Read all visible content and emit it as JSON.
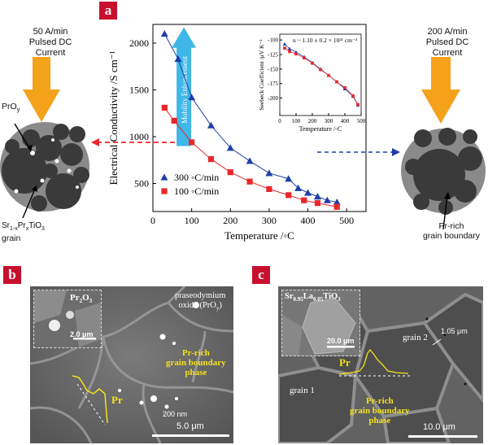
{
  "labels": {
    "a": "a",
    "b": "b",
    "c": "c"
  },
  "left": {
    "current": [
      "50 A/min",
      "Pulsed DC",
      "Current"
    ],
    "phase_label": "PrO",
    "phase_sub": "y",
    "grain_label": [
      "Sr",
      "1-x",
      "Pr",
      "x",
      "TiO",
      "3"
    ],
    "grain_word": "grain"
  },
  "right": {
    "current": [
      "200 A/min",
      "Pulsed DC",
      "Current"
    ],
    "label_line1": "Pr-rich",
    "label_line2": "grain boundary"
  },
  "chart_data": [
    {
      "type": "line",
      "xlabel": "Temperature /◦C",
      "ylabel": "Electrical Conductivity /S cm⁻¹",
      "xlim": [
        0,
        550
      ],
      "ylim": [
        200,
        2200
      ],
      "xticks": [
        0,
        100,
        200,
        300,
        400,
        500
      ],
      "yticks": [
        500,
        1000,
        1500,
        2000
      ],
      "grid": false,
      "legend_position": "bottom-left",
      "series": [
        {
          "name": "300 ◦C/min",
          "color": "#1f3fa8",
          "marker": "triangle",
          "x": [
            30,
            65,
            100,
            150,
            200,
            250,
            300,
            350,
            375,
            400,
            425,
            450,
            475
          ],
          "y": [
            2100,
            1830,
            1420,
            1120,
            880,
            740,
            610,
            550,
            450,
            400,
            360,
            320,
            300
          ]
        },
        {
          "name": "100 ◦C/min",
          "color": "#e8272a",
          "marker": "square",
          "x": [
            30,
            55,
            100,
            150,
            200,
            250,
            300,
            350,
            390,
            425,
            475
          ],
          "y": [
            1310,
            1170,
            940,
            760,
            620,
            520,
            440,
            375,
            320,
            290,
            250
          ]
        }
      ],
      "annotation": "Mobility Enhancement"
    },
    {
      "type": "line",
      "xlabel": "Temperature /◦C",
      "ylabel": "Seebeck Coefficient /μV K⁻¹",
      "annotation": "n ~ 1.10 ± 0.2 × 10²¹ cm⁻³",
      "xlim": [
        0,
        500
      ],
      "ylim": [
        -230,
        -90
      ],
      "xticks": [
        0,
        100,
        200,
        300,
        400,
        500
      ],
      "yticks": [
        -100,
        -125,
        -150,
        -175,
        -200
      ],
      "series": [
        {
          "name": "",
          "color": "#1f3fa8",
          "marker": "triangle",
          "x": [
            30,
            60,
            100,
            150,
            200,
            250,
            300,
            350,
            400,
            450,
            480
          ],
          "y": [
            -107,
            -115,
            -121,
            -129,
            -139,
            -150,
            -161,
            -172,
            -184,
            -197,
            -212
          ]
        },
        {
          "name": "",
          "color": "#e8272a",
          "marker": "square",
          "x": [
            30,
            60,
            100,
            150,
            200,
            250,
            300,
            350,
            400,
            450,
            480
          ],
          "y": [
            -114,
            -120,
            -124,
            -131,
            -140,
            -151,
            -161,
            -172,
            -182,
            -196,
            -211
          ]
        }
      ]
    }
  ],
  "b": {
    "inset_label": "Pr",
    "inset_sub1": "2",
    "inset_mid": "O",
    "inset_sub2": "3",
    "inset_scale": "2.0 μm",
    "oxide_label": [
      "praseodymium",
      "oxide (PrO"
    ],
    "oxide_sub": "y",
    "oxide_end": ")",
    "gb_label": [
      "Pr-rich",
      "grain boundary",
      "phase"
    ],
    "pr_label": "Pr",
    "size_label": "200 nm",
    "scale": "5.0 μm"
  },
  "c": {
    "inset_label": [
      "Sr",
      "0.95",
      "La",
      "0.05",
      "TiO",
      "3"
    ],
    "inset_scale": "20.0 μm",
    "size_label": "1.05 μm",
    "grain1": "grain 1",
    "grain2": "grain 2",
    "pr_label": "Pr",
    "gb_label": [
      "Pr-rich",
      "grain boundary",
      "phase"
    ],
    "scale": "10.0 μm"
  }
}
